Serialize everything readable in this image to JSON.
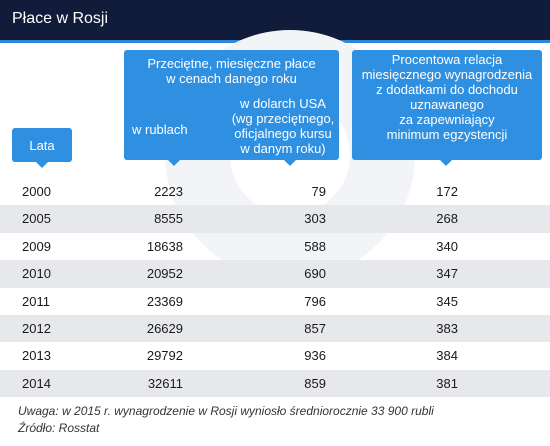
{
  "header": {
    "title": "Płace w Rosji"
  },
  "colors": {
    "header_bg": "#111b3a",
    "accent": "#2f8fe0",
    "row_alt": "#e6e8ec"
  },
  "columns": {
    "lata": "Lata",
    "group_title": [
      "Przeciętne, miesięczne płace",
      "w cenach  danego roku"
    ],
    "rub": "w rublach",
    "usd": [
      "w dolarch USA",
      "(wg przeciętnego,",
      "oficjalnego kursu",
      "w danym roku)"
    ],
    "relation": [
      "Procentowa relacja",
      "miesięcznego wynagrodzenia",
      "z dodatkami do dochodu",
      "uznawanego",
      "za zapewniający",
      "minimum egzystencji"
    ]
  },
  "chart_data": {
    "type": "table",
    "columns": [
      "Lata",
      "w rublach",
      "w dolarch USA (wg przeciętnego, oficjalnego kursu w danym roku)",
      "Procentowa relacja miesięcznego wynagrodzenia z dodatkami do dochodu uznawanego za zapewniający minimum egzystencji"
    ],
    "rows": [
      {
        "year": "2000",
        "rub": "2223",
        "usd": "79",
        "rel": "172"
      },
      {
        "year": "2005",
        "rub": "8555",
        "usd": "303",
        "rel": "268"
      },
      {
        "year": "2009",
        "rub": "18638",
        "usd": "588",
        "rel": "340"
      },
      {
        "year": "2010",
        "rub": "20952",
        "usd": "690",
        "rel": "347"
      },
      {
        "year": "2011",
        "rub": "23369",
        "usd": "796",
        "rel": "345"
      },
      {
        "year": "2012",
        "rub": "26629",
        "usd": "857",
        "rel": "383"
      },
      {
        "year": "2013",
        "rub": "29792",
        "usd": "936",
        "rel": "384"
      },
      {
        "year": "2014",
        "rub": "32611",
        "usd": "859",
        "rel": "381"
      }
    ]
  },
  "footer": {
    "note": "Uwaga: w 2015 r. wynagrodzenie w Rosji wyniosło średniorocznie 33 900 rubli",
    "source": "Źródło: Rosstat"
  }
}
